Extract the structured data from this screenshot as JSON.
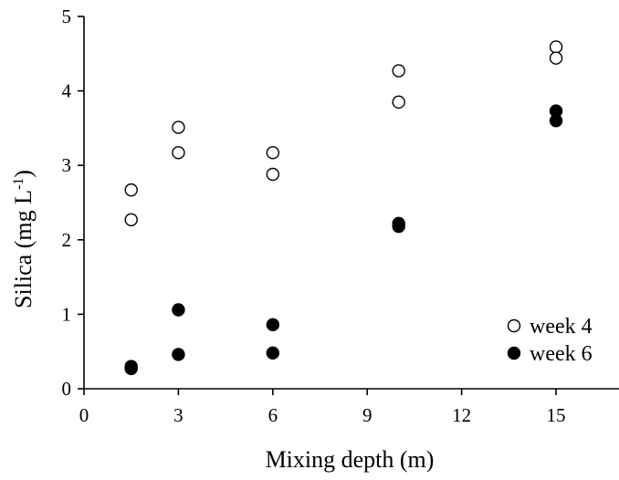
{
  "chart_data": {
    "type": "scatter",
    "title": "",
    "xlabel": "Mixing depth (m)",
    "ylabel_main": "Silica (mg L",
    "ylabel_sup": "-1",
    "ylabel_close": ")",
    "xlim": [
      0,
      17
    ],
    "ylim": [
      0,
      5
    ],
    "xticks": [
      0,
      3,
      6,
      9,
      12,
      15
    ],
    "yticks": [
      0,
      1,
      2,
      3,
      4,
      5
    ],
    "grid": false,
    "legend_position": "bottom-right",
    "series": [
      {
        "name": "week 4",
        "marker": "open-circle",
        "points": [
          [
            1.5,
            2.67
          ],
          [
            1.5,
            2.27
          ],
          [
            3,
            3.51
          ],
          [
            3,
            3.17
          ],
          [
            6,
            3.17
          ],
          [
            6,
            2.88
          ],
          [
            10,
            4.27
          ],
          [
            10,
            3.85
          ],
          [
            15,
            4.59
          ],
          [
            15,
            4.44
          ]
        ]
      },
      {
        "name": "week 6",
        "marker": "filled-circle",
        "points": [
          [
            1.5,
            0.3
          ],
          [
            1.5,
            0.27
          ],
          [
            3,
            1.06
          ],
          [
            3,
            0.46
          ],
          [
            6,
            0.86
          ],
          [
            6,
            0.48
          ],
          [
            10,
            2.22
          ],
          [
            10,
            2.18
          ],
          [
            15,
            3.73
          ],
          [
            15,
            3.6
          ]
        ]
      }
    ]
  }
}
